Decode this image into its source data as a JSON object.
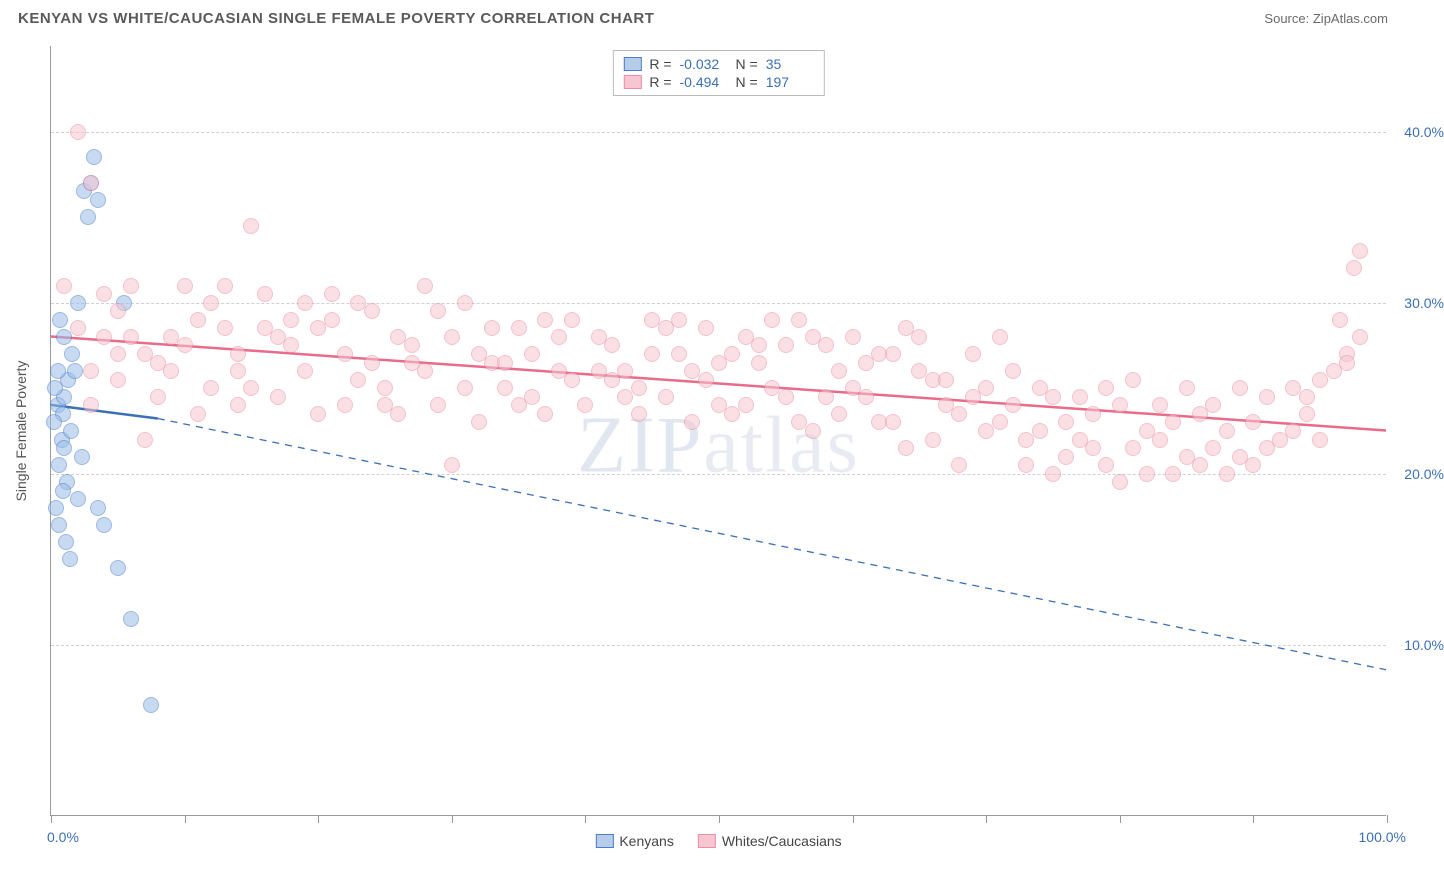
{
  "header": {
    "title": "KENYAN VS WHITE/CAUCASIAN SINGLE FEMALE POVERTY CORRELATION CHART",
    "source_label": "Source:",
    "source_value": "ZipAtlas.com"
  },
  "chart": {
    "type": "scatter",
    "yaxis_title": "Single Female Poverty",
    "watermark": "ZIPatlas",
    "xlim": [
      0,
      100
    ],
    "ylim": [
      0,
      45
    ],
    "background_color": "#ffffff",
    "grid_color": "#d0d0d0",
    "ytick_positions": [
      10,
      20,
      30,
      40
    ],
    "ytick_labels": [
      "10.0%",
      "20.0%",
      "30.0%",
      "40.0%"
    ],
    "xtick_positions": [
      0,
      10,
      20,
      30,
      40,
      50,
      60,
      70,
      80,
      90,
      100
    ],
    "xaxis_end_labels": {
      "left": "0.0%",
      "right": "100.0%"
    },
    "axis_label_color": "#3b6fb6",
    "series": [
      {
        "key": "kenyans",
        "label": "Kenyans",
        "color_fill": "#9bbce8",
        "color_stroke": "#4a7fc7",
        "marker_size": 16,
        "R": "-0.032",
        "N": "35",
        "trend": {
          "x1": 0,
          "y1": 24,
          "x2": 8,
          "y2": 23.2,
          "style": "solid",
          "width": 2.5,
          "color": "#3b6fb6"
        },
        "trend_ext": {
          "x1": 8,
          "y1": 23.2,
          "x2": 100,
          "y2": 8.5,
          "style": "dashed",
          "width": 1.3,
          "color": "#3b6fb6"
        },
        "points": [
          [
            0.5,
            24
          ],
          [
            0.8,
            22
          ],
          [
            0.6,
            20.5
          ],
          [
            1.0,
            21.5
          ],
          [
            1.2,
            19.5
          ],
          [
            0.9,
            23.5
          ],
          [
            1.5,
            22.5
          ],
          [
            1.3,
            25.5
          ],
          [
            1.8,
            26
          ],
          [
            1.0,
            28
          ],
          [
            0.7,
            29
          ],
          [
            2.0,
            30
          ],
          [
            2.5,
            36.5
          ],
          [
            3.0,
            37
          ],
          [
            3.2,
            38.5
          ],
          [
            3.5,
            36
          ],
          [
            2.8,
            35
          ],
          [
            5.5,
            30
          ],
          [
            0.4,
            18
          ],
          [
            0.6,
            17
          ],
          [
            1.1,
            16
          ],
          [
            1.4,
            15
          ],
          [
            0.9,
            19
          ],
          [
            2.0,
            18.5
          ],
          [
            2.3,
            21
          ],
          [
            3.5,
            18
          ],
          [
            4.0,
            17
          ],
          [
            5.0,
            14.5
          ],
          [
            6.0,
            11.5
          ],
          [
            7.5,
            6.5
          ],
          [
            1.0,
            24.5
          ],
          [
            1.6,
            27
          ],
          [
            0.3,
            25
          ],
          [
            0.5,
            26
          ],
          [
            0.2,
            23
          ]
        ]
      },
      {
        "key": "whites",
        "label": "Whites/Caucasians",
        "color_fill": "#f7c6d0",
        "color_stroke": "#ea8fa5",
        "marker_size": 16,
        "R": "-0.494",
        "N": "197",
        "trend": {
          "x1": 0,
          "y1": 28,
          "x2": 100,
          "y2": 22.5,
          "style": "solid",
          "width": 2.5,
          "color": "#e86b8a"
        },
        "points": [
          [
            2,
            40
          ],
          [
            3,
            37
          ],
          [
            1,
            31
          ],
          [
            4,
            30.5
          ],
          [
            6,
            28
          ],
          [
            5,
            29.5
          ],
          [
            7,
            27
          ],
          [
            8,
            26.5
          ],
          [
            3,
            24
          ],
          [
            5,
            25.5
          ],
          [
            9,
            28
          ],
          [
            10,
            27.5
          ],
          [
            11,
            29
          ],
          [
            12,
            30
          ],
          [
            13,
            28.5
          ],
          [
            14,
            27
          ],
          [
            15,
            34.5
          ],
          [
            14,
            26
          ],
          [
            10,
            31
          ],
          [
            16,
            30.5
          ],
          [
            17,
            28
          ],
          [
            18,
            27.5
          ],
          [
            19,
            26
          ],
          [
            20,
            28.5
          ],
          [
            21,
            29
          ],
          [
            22,
            27
          ],
          [
            23,
            30
          ],
          [
            24,
            26.5
          ],
          [
            25,
            25
          ],
          [
            26,
            28
          ],
          [
            25,
            24
          ],
          [
            27,
            27.5
          ],
          [
            28,
            26
          ],
          [
            29,
            29.5
          ],
          [
            30,
            28
          ],
          [
            31,
            30
          ],
          [
            32,
            27
          ],
          [
            33,
            26.5
          ],
          [
            34,
            25
          ],
          [
            35,
            28.5
          ],
          [
            36,
            27
          ],
          [
            37,
            29
          ],
          [
            38,
            26
          ],
          [
            39,
            25.5
          ],
          [
            40,
            24
          ],
          [
            30,
            20.5
          ],
          [
            41,
            28
          ],
          [
            42,
            27.5
          ],
          [
            43,
            26
          ],
          [
            44,
            25
          ],
          [
            45,
            29
          ],
          [
            46,
            28.5
          ],
          [
            47,
            27
          ],
          [
            48,
            26
          ],
          [
            49,
            25.5
          ],
          [
            50,
            24
          ],
          [
            51,
            27
          ],
          [
            52,
            28
          ],
          [
            53,
            26.5
          ],
          [
            54,
            25
          ],
          [
            55,
            24.5
          ],
          [
            56,
            29
          ],
          [
            57,
            28
          ],
          [
            58,
            27.5
          ],
          [
            59,
            26
          ],
          [
            60,
            25
          ],
          [
            61,
            24.5
          ],
          [
            62,
            23
          ],
          [
            63,
            27
          ],
          [
            64,
            28.5
          ],
          [
            65,
            26
          ],
          [
            66,
            25.5
          ],
          [
            67,
            24
          ],
          [
            68,
            23.5
          ],
          [
            69,
            27
          ],
          [
            70,
            22.5
          ],
          [
            71,
            23
          ],
          [
            72,
            24
          ],
          [
            73,
            22
          ],
          [
            74,
            25
          ],
          [
            75,
            24.5
          ],
          [
            76,
            21
          ],
          [
            77,
            22
          ],
          [
            78,
            23.5
          ],
          [
            79,
            20.5
          ],
          [
            80,
            24
          ],
          [
            81,
            21.5
          ],
          [
            82,
            20
          ],
          [
            83,
            22
          ],
          [
            84,
            23
          ],
          [
            85,
            21
          ],
          [
            86,
            20.5
          ],
          [
            87,
            24
          ],
          [
            88,
            22.5
          ],
          [
            89,
            21
          ],
          [
            90,
            23
          ],
          [
            91,
            24.5
          ],
          [
            92,
            22
          ],
          [
            93,
            25
          ],
          [
            94,
            23.5
          ],
          [
            95,
            25.5
          ],
          [
            96,
            26
          ],
          [
            97,
            27
          ],
          [
            96.5,
            29
          ],
          [
            97,
            26.5
          ],
          [
            98,
            28
          ],
          [
            97.5,
            32
          ],
          [
            98,
            33
          ],
          [
            95,
            22
          ],
          [
            94,
            24.5
          ],
          [
            12,
            25
          ],
          [
            8,
            24.5
          ],
          [
            6,
            31
          ],
          [
            4,
            28
          ],
          [
            18,
            29
          ],
          [
            22,
            24
          ],
          [
            26,
            23.5
          ],
          [
            33,
            28.5
          ],
          [
            38,
            28
          ],
          [
            43,
            24.5
          ],
          [
            47,
            29
          ],
          [
            52,
            24
          ],
          [
            56,
            23
          ],
          [
            61,
            26.5
          ],
          [
            66,
            22
          ],
          [
            71,
            28
          ],
          [
            76,
            23
          ],
          [
            81,
            25.5
          ],
          [
            86,
            23.5
          ],
          [
            90,
            20.5
          ],
          [
            14,
            24
          ],
          [
            19,
            30
          ],
          [
            24,
            29.5
          ],
          [
            29,
            24
          ],
          [
            34,
            26.5
          ],
          [
            39,
            29
          ],
          [
            44,
            23.5
          ],
          [
            49,
            28.5
          ],
          [
            54,
            29
          ],
          [
            59,
            23.5
          ],
          [
            64,
            21.5
          ],
          [
            69,
            24.5
          ],
          [
            74,
            22.5
          ],
          [
            79,
            25
          ],
          [
            84,
            20
          ],
          [
            89,
            25
          ],
          [
            93,
            22.5
          ],
          [
            88,
            20
          ],
          [
            82,
            22.5
          ],
          [
            77,
            24.5
          ],
          [
            72,
            26
          ],
          [
            67,
            25.5
          ],
          [
            62,
            27
          ],
          [
            57,
            22.5
          ],
          [
            48,
            23
          ],
          [
            41,
            26
          ],
          [
            36,
            24.5
          ],
          [
            31,
            25
          ],
          [
            23,
            25.5
          ],
          [
            16,
            28.5
          ],
          [
            9,
            26
          ],
          [
            5,
            27
          ],
          [
            2,
            28.5
          ],
          [
            11,
            23.5
          ],
          [
            7,
            22
          ],
          [
            13,
            31
          ],
          [
            21,
            30.5
          ],
          [
            28,
            31
          ],
          [
            35,
            24
          ],
          [
            42,
            25.5
          ],
          [
            51,
            23.5
          ],
          [
            58,
            24.5
          ],
          [
            65,
            28
          ],
          [
            70,
            25
          ],
          [
            75,
            20
          ],
          [
            80,
            19.5
          ],
          [
            85,
            25
          ],
          [
            15,
            25
          ],
          [
            20,
            23.5
          ],
          [
            45,
            27
          ],
          [
            50,
            26.5
          ],
          [
            55,
            27.5
          ],
          [
            60,
            28
          ],
          [
            68,
            20.5
          ],
          [
            73,
            20.5
          ],
          [
            78,
            21.5
          ],
          [
            83,
            24
          ],
          [
            87,
            21.5
          ],
          [
            91,
            21.5
          ],
          [
            37,
            23.5
          ],
          [
            32,
            23
          ],
          [
            27,
            26.5
          ],
          [
            17,
            24.5
          ],
          [
            46,
            24.5
          ],
          [
            53,
            27.5
          ],
          [
            63,
            23
          ],
          [
            3,
            26
          ]
        ]
      }
    ],
    "bottom_legend": [
      {
        "swatch": "blue",
        "label": "Kenyans"
      },
      {
        "swatch": "pink",
        "label": "Whites/Caucasians"
      }
    ]
  }
}
